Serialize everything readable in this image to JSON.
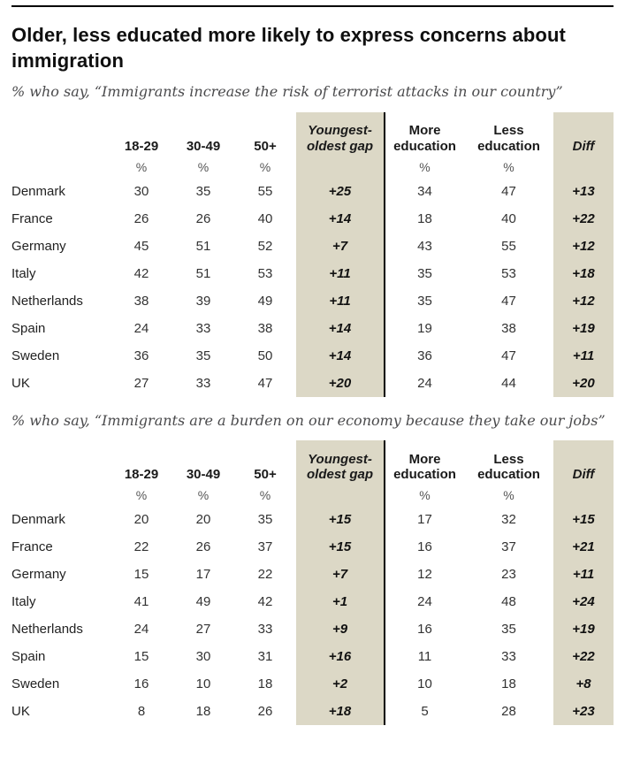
{
  "title": "Older, less educated more likely to express concerns about immigration",
  "header": {
    "age_18_29": "18-29",
    "age_30_49": "30-49",
    "age_50_plus": "50+",
    "gap": "Youngest-oldest gap",
    "more_education": "More education",
    "less_education": "Less education",
    "diff": "Diff",
    "unit": "%"
  },
  "colors": {
    "shaded_column": "#DCD8C6",
    "divider": "#000000",
    "title_text": "#0F0F0F",
    "subtitle_text": "#4A4A4C"
  },
  "chart_data": [
    {
      "type": "table",
      "title": "Older, less educated more likely to express concerns about immigration",
      "subtitle": "% who say, “Immigrants increase the risk of terrorist attacks in our country”",
      "columns": [
        "18-29",
        "30-49",
        "50+",
        "Youngest-oldest gap",
        "More education",
        "Less education",
        "Diff"
      ],
      "unit_columns": [
        "18-29",
        "30-49",
        "50+",
        "More education",
        "Less education"
      ],
      "rows": [
        {
          "country": "Denmark",
          "age_18_29": "30",
          "age_30_49": "35",
          "age_50_plus": "55",
          "gap": "+25",
          "more_education": "34",
          "less_education": "47",
          "diff": "+13"
        },
        {
          "country": "France",
          "age_18_29": "26",
          "age_30_49": "26",
          "age_50_plus": "40",
          "gap": "+14",
          "more_education": "18",
          "less_education": "40",
          "diff": "+22"
        },
        {
          "country": "Germany",
          "age_18_29": "45",
          "age_30_49": "51",
          "age_50_plus": "52",
          "gap": "+7",
          "more_education": "43",
          "less_education": "55",
          "diff": "+12"
        },
        {
          "country": "Italy",
          "age_18_29": "42",
          "age_30_49": "51",
          "age_50_plus": "53",
          "gap": "+11",
          "more_education": "35",
          "less_education": "53",
          "diff": "+18"
        },
        {
          "country": "Netherlands",
          "age_18_29": "38",
          "age_30_49": "39",
          "age_50_plus": "49",
          "gap": "+11",
          "more_education": "35",
          "less_education": "47",
          "diff": "+12"
        },
        {
          "country": "Spain",
          "age_18_29": "24",
          "age_30_49": "33",
          "age_50_plus": "38",
          "gap": "+14",
          "more_education": "19",
          "less_education": "38",
          "diff": "+19"
        },
        {
          "country": "Sweden",
          "age_18_29": "36",
          "age_30_49": "35",
          "age_50_plus": "50",
          "gap": "+14",
          "more_education": "36",
          "less_education": "47",
          "diff": "+11"
        },
        {
          "country": "UK",
          "age_18_29": "27",
          "age_30_49": "33",
          "age_50_plus": "47",
          "gap": "+20",
          "more_education": "24",
          "less_education": "44",
          "diff": "+20"
        }
      ]
    },
    {
      "type": "table",
      "title": "Older, less educated more likely to express concerns about immigration",
      "subtitle": "% who say, “Immigrants are a burden on our economy because they take our jobs”",
      "columns": [
        "18-29",
        "30-49",
        "50+",
        "Youngest-oldest gap",
        "More education",
        "Less education",
        "Diff"
      ],
      "unit_columns": [
        "18-29",
        "30-49",
        "50+",
        "More education",
        "Less education"
      ],
      "rows": [
        {
          "country": "Denmark",
          "age_18_29": "20",
          "age_30_49": "20",
          "age_50_plus": "35",
          "gap": "+15",
          "more_education": "17",
          "less_education": "32",
          "diff": "+15"
        },
        {
          "country": "France",
          "age_18_29": "22",
          "age_30_49": "26",
          "age_50_plus": "37",
          "gap": "+15",
          "more_education": "16",
          "less_education": "37",
          "diff": "+21"
        },
        {
          "country": "Germany",
          "age_18_29": "15",
          "age_30_49": "17",
          "age_50_plus": "22",
          "gap": "+7",
          "more_education": "12",
          "less_education": "23",
          "diff": "+11"
        },
        {
          "country": "Italy",
          "age_18_29": "41",
          "age_30_49": "49",
          "age_50_plus": "42",
          "gap": "+1",
          "more_education": "24",
          "less_education": "48",
          "diff": "+24"
        },
        {
          "country": "Netherlands",
          "age_18_29": "24",
          "age_30_49": "27",
          "age_50_plus": "33",
          "gap": "+9",
          "more_education": "16",
          "less_education": "35",
          "diff": "+19"
        },
        {
          "country": "Spain",
          "age_18_29": "15",
          "age_30_49": "30",
          "age_50_plus": "31",
          "gap": "+16",
          "more_education": "11",
          "less_education": "33",
          "diff": "+22"
        },
        {
          "country": "Sweden",
          "age_18_29": "16",
          "age_30_49": "10",
          "age_50_plus": "18",
          "gap": "+2",
          "more_education": "10",
          "less_education": "18",
          "diff": "+8"
        },
        {
          "country": "UK",
          "age_18_29": "8",
          "age_30_49": "18",
          "age_50_plus": "26",
          "gap": "+18",
          "more_education": "5",
          "less_education": "28",
          "diff": "+23"
        }
      ]
    }
  ]
}
